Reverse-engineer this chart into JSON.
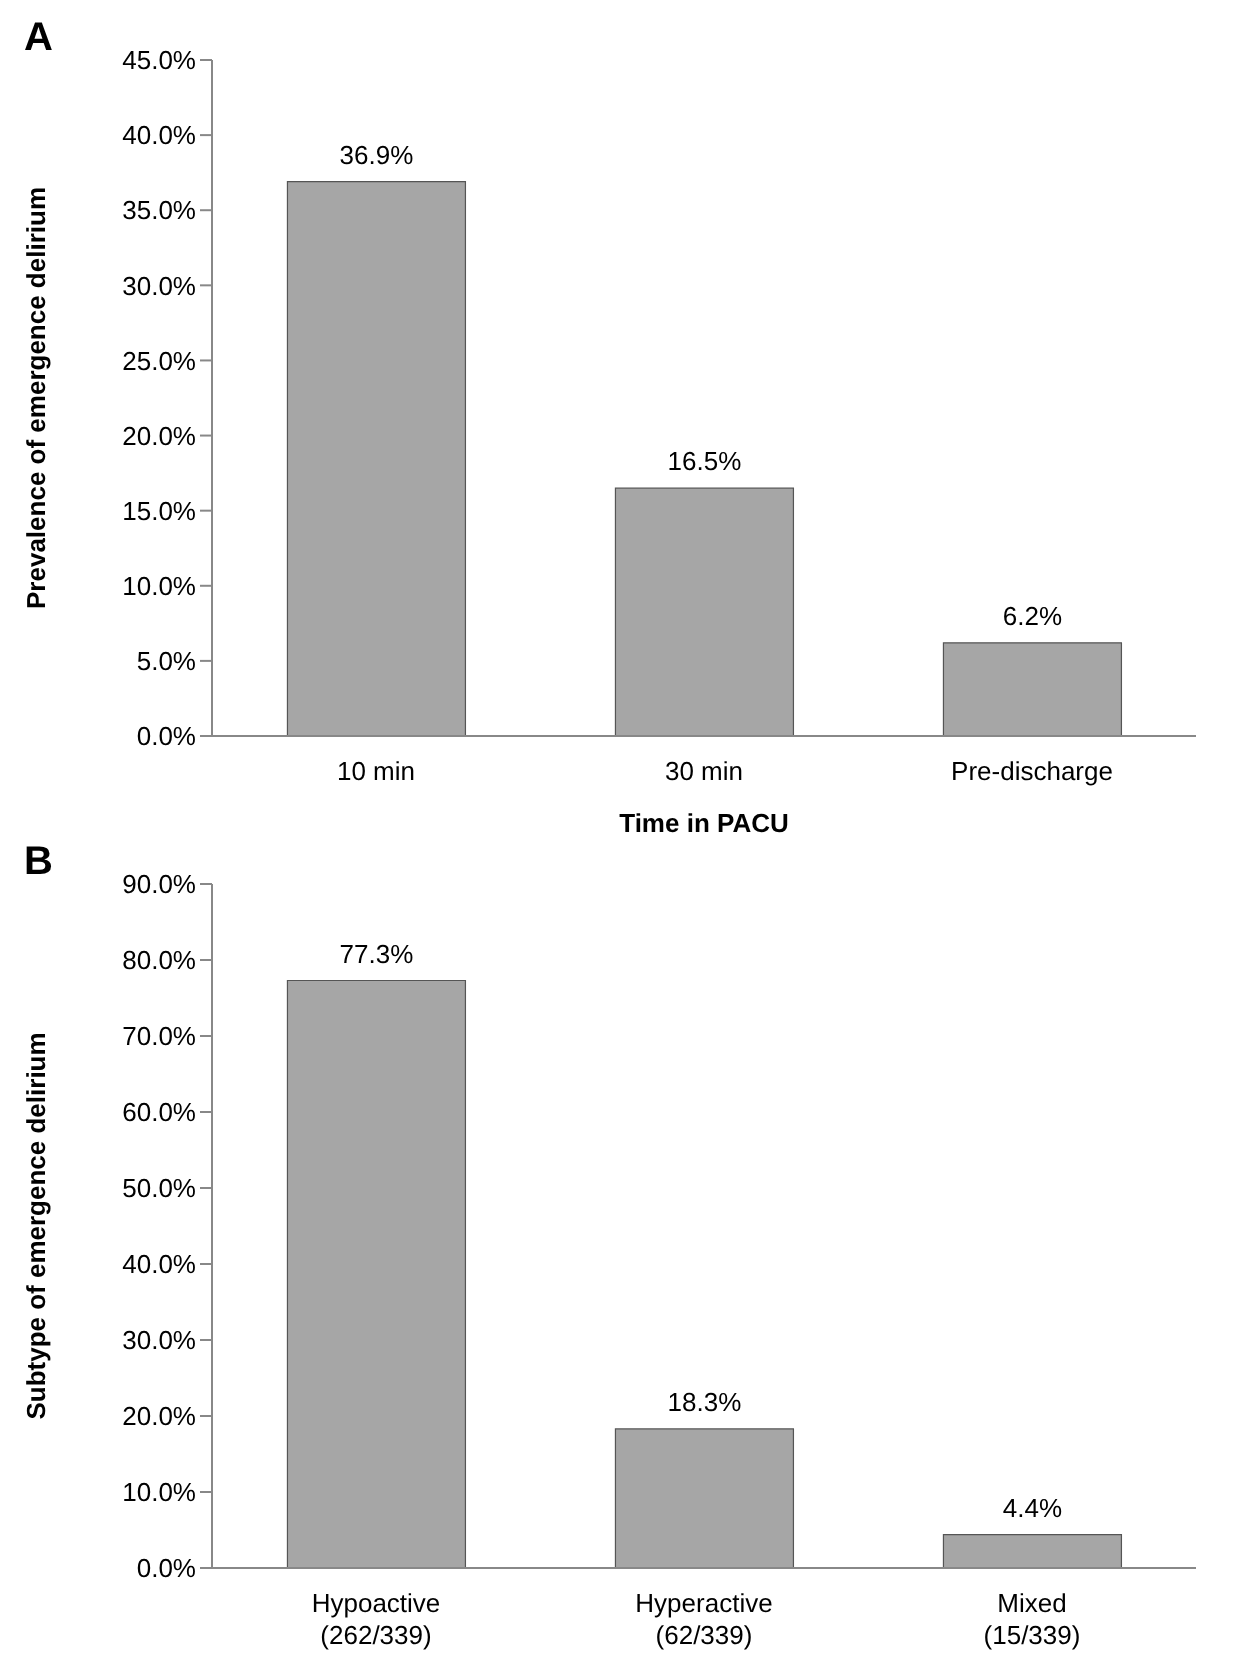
{
  "chart_data": [
    {
      "type": "bar",
      "title": "A",
      "categories": [
        "10 min",
        "30 min",
        "Pre-discharge"
      ],
      "values": [
        36.9,
        16.5,
        6.2
      ],
      "color": "#a6a6a6",
      "value_labels": [
        "36.9%",
        "16.5%",
        "6.2%"
      ],
      "xlabel": "Time in PACU",
      "ylabel": "Prevalence of emergence delirium",
      "ylim": [
        0,
        45
      ],
      "yticks": [
        {
          "value": 0,
          "label": "0.0%"
        },
        {
          "value": 5,
          "label": "5.0%"
        },
        {
          "value": 10,
          "label": "10.0%"
        },
        {
          "value": 15,
          "label": "15.0%"
        },
        {
          "value": 20,
          "label": "20.0%"
        },
        {
          "value": 25,
          "label": "25.0%"
        },
        {
          "value": 30,
          "label": "30.0%"
        },
        {
          "value": 35,
          "label": "35.0%"
        },
        {
          "value": 40,
          "label": "40.0%"
        },
        {
          "value": 45,
          "label": "45.0%"
        }
      ],
      "grid": false,
      "legend": false
    },
    {
      "type": "bar",
      "title": "B",
      "categories": [
        "Hypoactive\n(262/339)",
        "Hyperactive\n(62/339)",
        "Mixed\n(15/339)"
      ],
      "values": [
        77.3,
        18.3,
        4.4
      ],
      "color": "#a6a6a6",
      "value_labels": [
        "77.3%",
        "18.3%",
        "4.4%"
      ],
      "ylabel": "Subtype of emergence delirium",
      "ylim": [
        0,
        90
      ],
      "yticks": [
        {
          "value": 0,
          "label": "0.0%"
        },
        {
          "value": 10,
          "label": "10.0%"
        },
        {
          "value": 20,
          "label": "20.0%"
        },
        {
          "value": 30,
          "label": "30.0%"
        },
        {
          "value": 40,
          "label": "40.0%"
        },
        {
          "value": 50,
          "label": "50.0%"
        },
        {
          "value": 60,
          "label": "60.0%"
        },
        {
          "value": 70,
          "label": "70.0%"
        },
        {
          "value": 80,
          "label": "80.0%"
        },
        {
          "value": 90,
          "label": "90.0%"
        }
      ],
      "grid": false,
      "legend": false
    }
  ]
}
